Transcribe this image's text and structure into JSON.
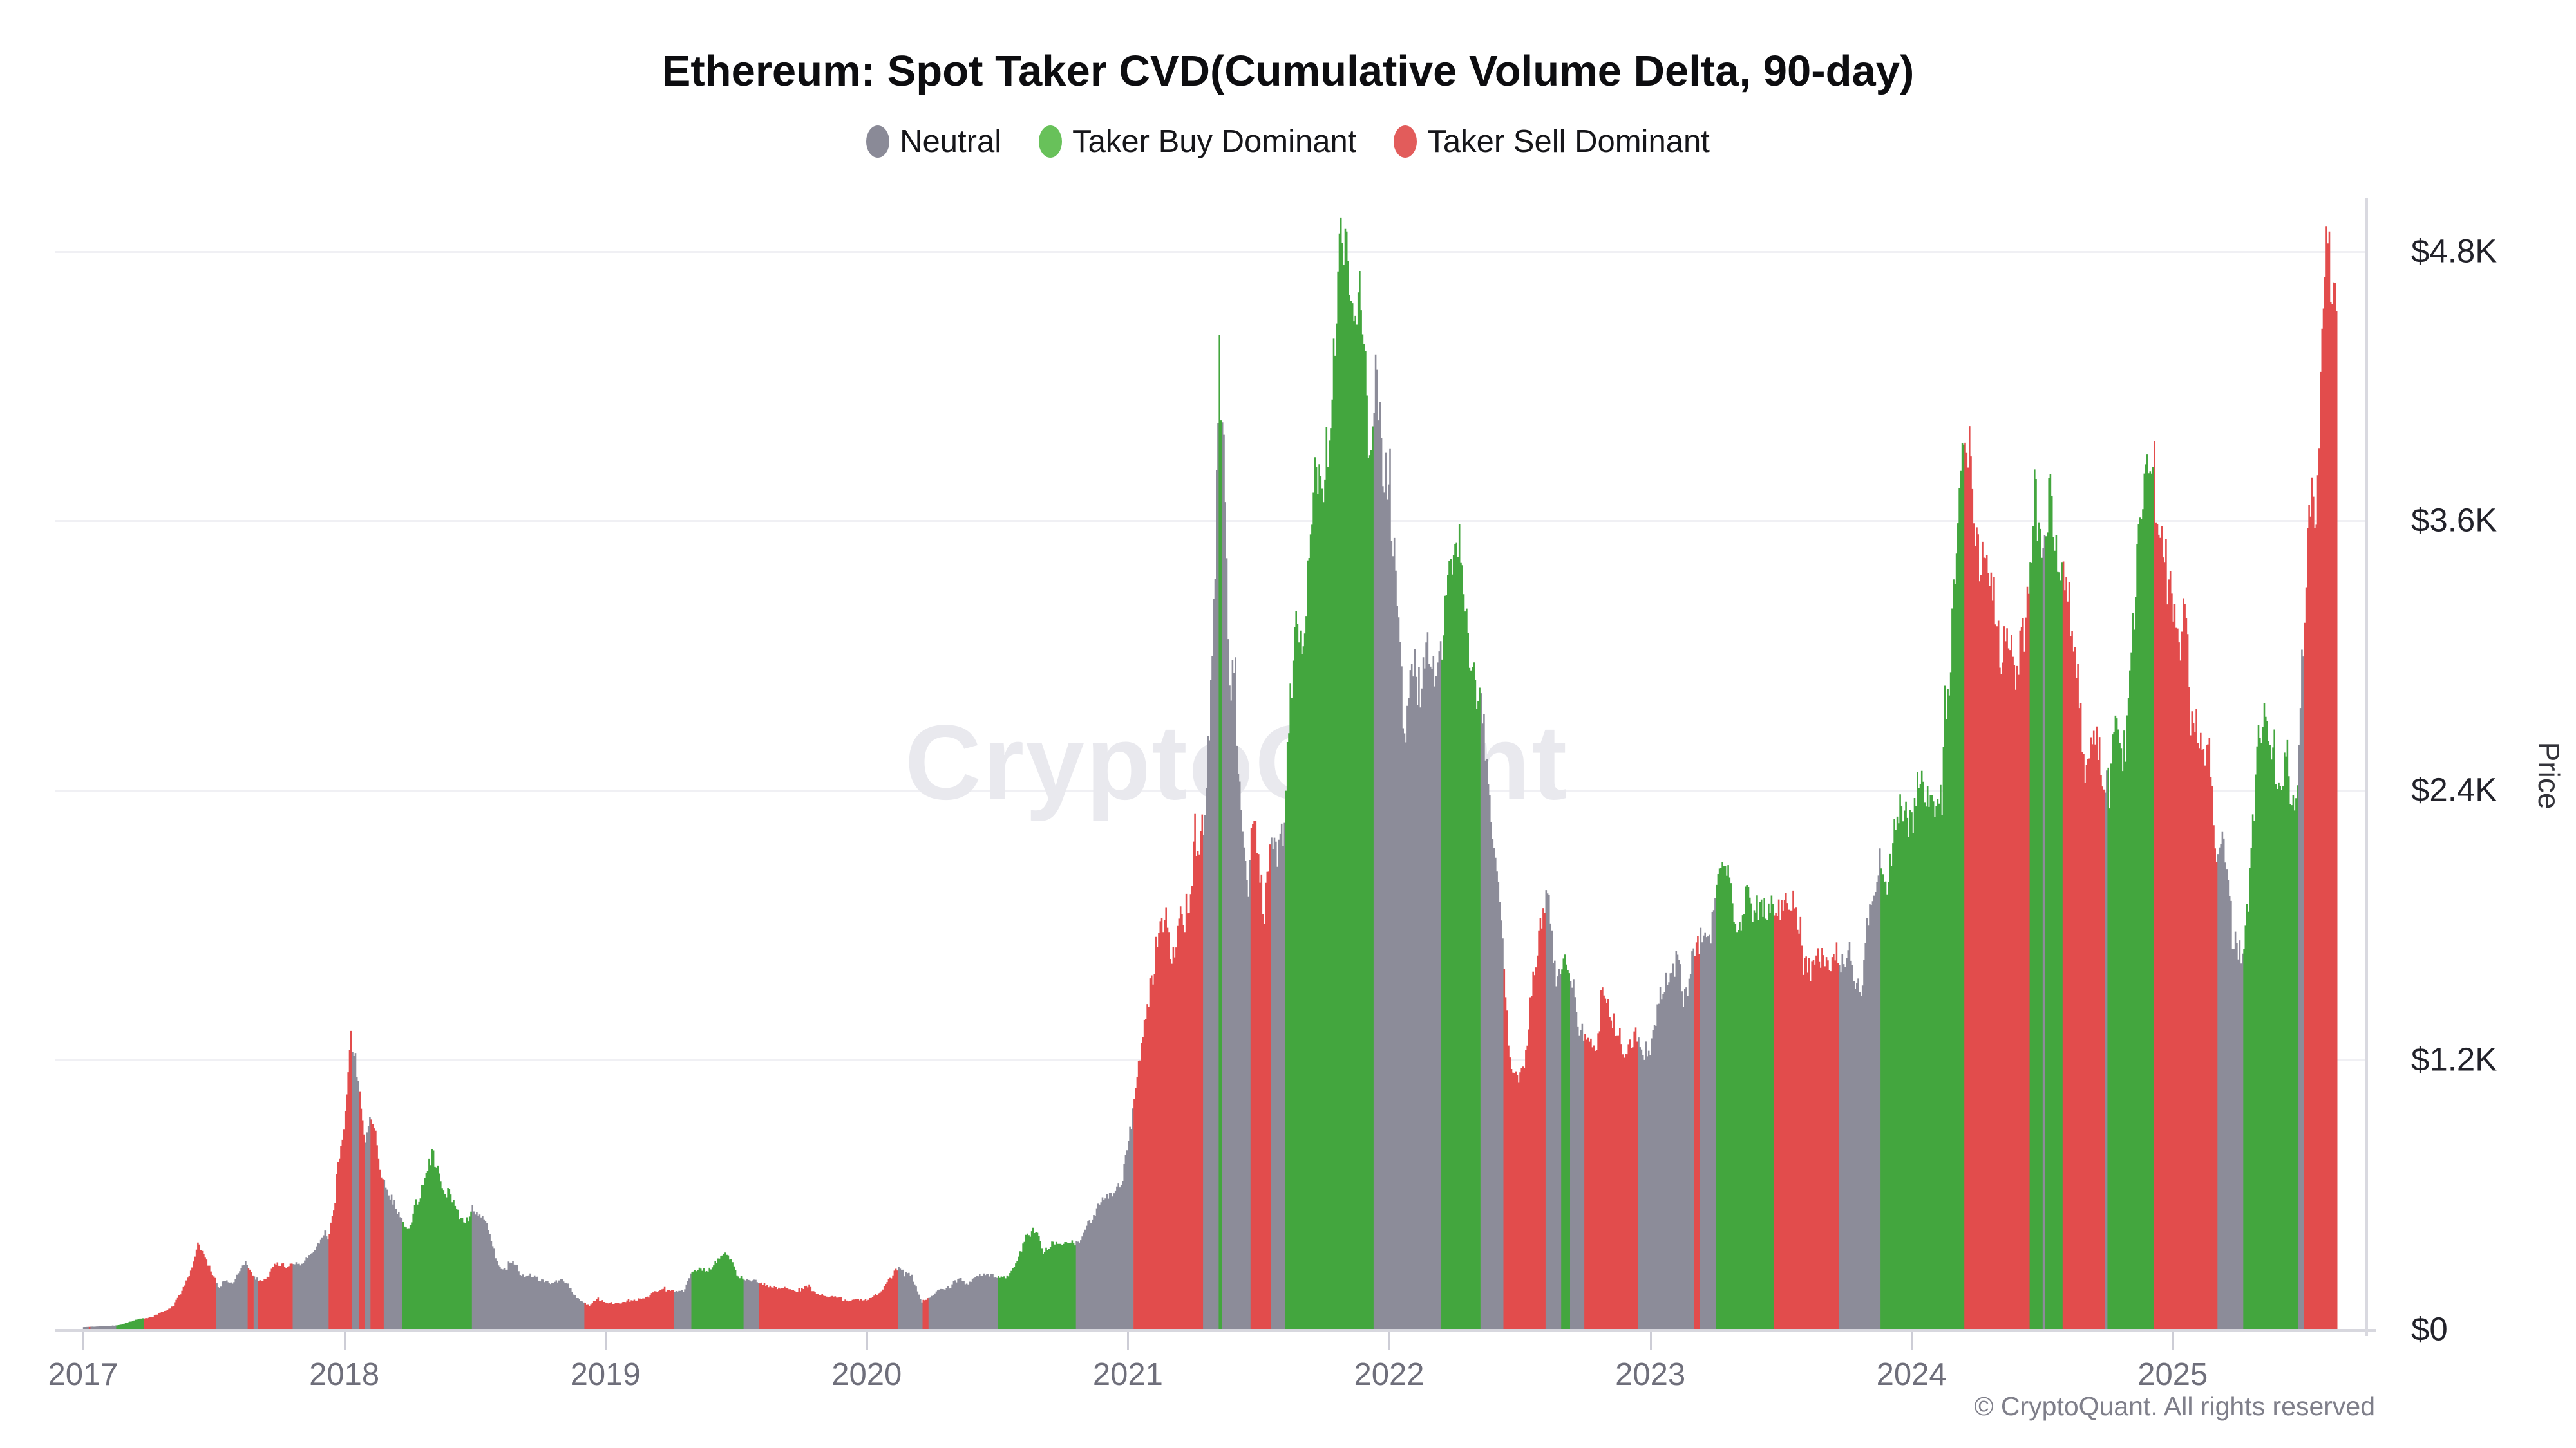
{
  "title": "Ethereum: Spot Taker CVD(Cumulative Volume Delta, 90-day)",
  "watermark": "CryptoQuant",
  "footer": "© CryptoQuant. All rights reserved",
  "legend": {
    "items": [
      {
        "label": "Neutral",
        "color": "#8a8a97"
      },
      {
        "label": "Taker Buy Dominant",
        "color": "#68c15a"
      },
      {
        "label": "Taker Sell Dominant",
        "color": "#e25c5b"
      }
    ]
  },
  "chart_data": {
    "type": "bar",
    "title": "Ethereum: Spot Taker CVD(Cumulative Volume Delta, 90-day)",
    "xlabel": "",
    "ylabel": "Price",
    "legend_position": "top",
    "grid": "horizontal-only",
    "x_range": [
      2017.0,
      2025.63
    ],
    "ylim": [
      0,
      5020
    ],
    "x_axis_years": [
      2017,
      2018,
      2019,
      2020,
      2021,
      2022,
      2023,
      2024,
      2025
    ],
    "y_ticks": [
      {
        "value": 0,
        "label": "$0"
      },
      {
        "value": 1200,
        "label": "$1.2K"
      },
      {
        "value": 2400,
        "label": "$2.4K"
      },
      {
        "value": 3600,
        "label": "$3.6K"
      },
      {
        "value": 4800,
        "label": "$4.8K"
      }
    ],
    "series_unit": "USD",
    "states": {
      "n": "neutral",
      "g": "taker-buy-dominant",
      "r": "taker-sell-dominant"
    },
    "colors": {
      "n": "#8c8c99",
      "g": "#43a63e",
      "r": "#e24c4c"
    },
    "price_anchors": [
      [
        2017.0,
        8
      ],
      [
        2017.05,
        11
      ],
      [
        2017.1,
        14
      ],
      [
        2017.14,
        18
      ],
      [
        2017.18,
        32
      ],
      [
        2017.22,
        48
      ],
      [
        2017.26,
        52
      ],
      [
        2017.3,
        72
      ],
      [
        2017.34,
        95
      ],
      [
        2017.38,
        165
      ],
      [
        2017.42,
        270
      ],
      [
        2017.44,
        390
      ],
      [
        2017.46,
        345
      ],
      [
        2017.49,
        270
      ],
      [
        2017.52,
        180
      ],
      [
        2017.55,
        230
      ],
      [
        2017.57,
        205
      ],
      [
        2017.6,
        275
      ],
      [
        2017.62,
        310
      ],
      [
        2017.65,
        250
      ],
      [
        2017.68,
        215
      ],
      [
        2017.71,
        230
      ],
      [
        2017.74,
        295
      ],
      [
        2017.77,
        285
      ],
      [
        2017.8,
        298
      ],
      [
        2017.83,
        292
      ],
      [
        2017.86,
        325
      ],
      [
        2017.89,
        350
      ],
      [
        2017.92,
        420
      ],
      [
        2017.95,
        470
      ],
      [
        2017.975,
        700
      ],
      [
        2018.0,
        880
      ],
      [
        2018.025,
        1330
      ],
      [
        2018.045,
        1190
      ],
      [
        2018.065,
        1010
      ],
      [
        2018.085,
        860
      ],
      [
        2018.105,
        950
      ],
      [
        2018.125,
        840
      ],
      [
        2018.145,
        700
      ],
      [
        2018.17,
        590
      ],
      [
        2018.2,
        540
      ],
      [
        2018.22,
        480
      ],
      [
        2018.25,
        430
      ],
      [
        2018.28,
        560
      ],
      [
        2018.31,
        700
      ],
      [
        2018.34,
        820
      ],
      [
        2018.37,
        680
      ],
      [
        2018.4,
        600
      ],
      [
        2018.43,
        520
      ],
      [
        2018.46,
        470
      ],
      [
        2018.49,
        560
      ],
      [
        2018.52,
        500
      ],
      [
        2018.55,
        455
      ],
      [
        2018.58,
        300
      ],
      [
        2018.61,
        275
      ],
      [
        2018.64,
        290
      ],
      [
        2018.67,
        255
      ],
      [
        2018.7,
        235
      ],
      [
        2018.73,
        228
      ],
      [
        2018.76,
        215
      ],
      [
        2018.79,
        205
      ],
      [
        2018.82,
        218
      ],
      [
        2018.85,
        208
      ],
      [
        2018.88,
        155
      ],
      [
        2018.91,
        115
      ],
      [
        2018.94,
        98
      ],
      [
        2018.97,
        135
      ],
      [
        2019.0,
        122
      ],
      [
        2019.03,
        108
      ],
      [
        2019.06,
        112
      ],
      [
        2019.09,
        126
      ],
      [
        2019.12,
        136
      ],
      [
        2019.15,
        142
      ],
      [
        2019.18,
        158
      ],
      [
        2019.21,
        172
      ],
      [
        2019.24,
        166
      ],
      [
        2019.27,
        162
      ],
      [
        2019.3,
        176
      ],
      [
        2019.33,
        248
      ],
      [
        2019.36,
        262
      ],
      [
        2019.39,
        248
      ],
      [
        2019.43,
        298
      ],
      [
        2019.46,
        358
      ],
      [
        2019.48,
        308
      ],
      [
        2019.51,
        232
      ],
      [
        2019.54,
        215
      ],
      [
        2019.57,
        228
      ],
      [
        2019.6,
        202
      ],
      [
        2019.63,
        186
      ],
      [
        2019.66,
        172
      ],
      [
        2019.69,
        186
      ],
      [
        2019.72,
        176
      ],
      [
        2019.75,
        172
      ],
      [
        2019.78,
        186
      ],
      [
        2019.81,
        162
      ],
      [
        2019.84,
        148
      ],
      [
        2019.87,
        142
      ],
      [
        2019.9,
        136
      ],
      [
        2019.93,
        128
      ],
      [
        2019.96,
        131
      ],
      [
        2020.0,
        133
      ],
      [
        2020.03,
        147
      ],
      [
        2020.06,
        172
      ],
      [
        2020.09,
        226
      ],
      [
        2020.12,
        262
      ],
      [
        2020.15,
        242
      ],
      [
        2020.18,
        225
      ],
      [
        2020.21,
        122
      ],
      [
        2020.24,
        138
      ],
      [
        2020.27,
        162
      ],
      [
        2020.3,
        188
      ],
      [
        2020.33,
        202
      ],
      [
        2020.36,
        212
      ],
      [
        2020.39,
        206
      ],
      [
        2020.42,
        236
      ],
      [
        2020.45,
        231
      ],
      [
        2020.48,
        229
      ],
      [
        2020.51,
        232
      ],
      [
        2020.54,
        242
      ],
      [
        2020.57,
        292
      ],
      [
        2020.6,
        388
      ],
      [
        2020.63,
        425
      ],
      [
        2020.65,
        438
      ],
      [
        2020.68,
        335
      ],
      [
        2020.71,
        368
      ],
      [
        2020.74,
        358
      ],
      [
        2020.77,
        378
      ],
      [
        2020.8,
        388
      ],
      [
        2020.83,
        442
      ],
      [
        2020.86,
        485
      ],
      [
        2020.89,
        545
      ],
      [
        2020.92,
        605
      ],
      [
        2020.95,
        625
      ],
      [
        2020.98,
        688
      ],
      [
        2021.01,
        860
      ],
      [
        2021.03,
        1080
      ],
      [
        2021.06,
        1320
      ],
      [
        2021.09,
        1620
      ],
      [
        2021.12,
        1760
      ],
      [
        2021.15,
        1850
      ],
      [
        2021.17,
        1620
      ],
      [
        2021.2,
        1920
      ],
      [
        2021.23,
        1780
      ],
      [
        2021.26,
        2120
      ],
      [
        2021.29,
        2360
      ],
      [
        2021.32,
        2950
      ],
      [
        2021.35,
        4160
      ],
      [
        2021.37,
        3700
      ],
      [
        2021.39,
        2750
      ],
      [
        2021.41,
        2880
      ],
      [
        2021.43,
        2380
      ],
      [
        2021.46,
        2020
      ],
      [
        2021.48,
        2420
      ],
      [
        2021.5,
        2170
      ],
      [
        2021.52,
        1880
      ],
      [
        2021.55,
        2260
      ],
      [
        2021.57,
        2160
      ],
      [
        2021.6,
        2320
      ],
      [
        2021.62,
        2660
      ],
      [
        2021.65,
        3220
      ],
      [
        2021.67,
        3060
      ],
      [
        2021.69,
        3260
      ],
      [
        2021.72,
        3860
      ],
      [
        2021.74,
        3620
      ],
      [
        2021.77,
        3960
      ],
      [
        2021.79,
        4320
      ],
      [
        2021.81,
        4660
      ],
      [
        2021.83,
        4810
      ],
      [
        2021.85,
        4610
      ],
      [
        2021.87,
        4360
      ],
      [
        2021.89,
        4660
      ],
      [
        2021.91,
        4260
      ],
      [
        2021.93,
        4160
      ],
      [
        2021.95,
        4460
      ],
      [
        2021.97,
        4110
      ],
      [
        2022.0,
        3760
      ],
      [
        2022.03,
        3260
      ],
      [
        2022.06,
        2620
      ],
      [
        2022.09,
        2960
      ],
      [
        2022.12,
        2720
      ],
      [
        2022.15,
        2960
      ],
      [
        2022.18,
        2860
      ],
      [
        2022.21,
        3160
      ],
      [
        2022.24,
        3360
      ],
      [
        2022.26,
        3480
      ],
      [
        2022.29,
        3160
      ],
      [
        2022.32,
        2960
      ],
      [
        2022.35,
        2720
      ],
      [
        2022.38,
        2360
      ],
      [
        2022.41,
        2020
      ],
      [
        2022.43,
        1780
      ],
      [
        2022.46,
        1210
      ],
      [
        2022.49,
        1110
      ],
      [
        2022.52,
        1210
      ],
      [
        2022.55,
        1510
      ],
      [
        2022.58,
        1710
      ],
      [
        2022.61,
        1910
      ],
      [
        2022.64,
        1620
      ],
      [
        2022.67,
        1710
      ],
      [
        2022.7,
        1610
      ],
      [
        2022.73,
        1360
      ],
      [
        2022.76,
        1340
      ],
      [
        2022.79,
        1310
      ],
      [
        2022.82,
        1510
      ],
      [
        2022.85,
        1340
      ],
      [
        2022.88,
        1260
      ],
      [
        2022.91,
        1160
      ],
      [
        2022.94,
        1275
      ],
      [
        2022.97,
        1210
      ],
      [
        2023.0,
        1225
      ],
      [
        2023.04,
        1455
      ],
      [
        2023.08,
        1605
      ],
      [
        2023.11,
        1655
      ],
      [
        2023.13,
        1505
      ],
      [
        2023.16,
        1655
      ],
      [
        2023.19,
        1755
      ],
      [
        2023.22,
        1805
      ],
      [
        2023.25,
        1875
      ],
      [
        2023.28,
        2085
      ],
      [
        2023.31,
        1905
      ],
      [
        2023.34,
        1835
      ],
      [
        2023.37,
        1885
      ],
      [
        2023.4,
        1905
      ],
      [
        2023.43,
        1885
      ],
      [
        2023.46,
        1865
      ],
      [
        2023.49,
        1925
      ],
      [
        2023.52,
        1885
      ],
      [
        2023.55,
        1835
      ],
      [
        2023.58,
        1675
      ],
      [
        2023.61,
        1655
      ],
      [
        2023.64,
        1635
      ],
      [
        2023.67,
        1605
      ],
      [
        2023.7,
        1655
      ],
      [
        2023.73,
        1585
      ],
      [
        2023.76,
        1685
      ],
      [
        2023.79,
        1565
      ],
      [
        2023.82,
        1635
      ],
      [
        2023.85,
        1855
      ],
      [
        2023.88,
        2055
      ],
      [
        2023.91,
        1985
      ],
      [
        2023.94,
        2255
      ],
      [
        2023.97,
        2355
      ],
      [
        2024.0,
        2305
      ],
      [
        2024.03,
        2405
      ],
      [
        2024.06,
        2305
      ],
      [
        2024.09,
        2355
      ],
      [
        2024.12,
        2555
      ],
      [
        2024.15,
        2905
      ],
      [
        2024.18,
        3655
      ],
      [
        2024.2,
        4060
      ],
      [
        2024.22,
        3905
      ],
      [
        2024.24,
        3555
      ],
      [
        2024.26,
        3255
      ],
      [
        2024.29,
        3505
      ],
      [
        2024.32,
        3305
      ],
      [
        2024.34,
        3005
      ],
      [
        2024.37,
        3155
      ],
      [
        2024.4,
        2955
      ],
      [
        2024.43,
        3105
      ],
      [
        2024.45,
        3355
      ],
      [
        2024.47,
        3805
      ],
      [
        2024.5,
        3655
      ],
      [
        2024.53,
        3855
      ],
      [
        2024.55,
        3505
      ],
      [
        2024.58,
        3405
      ],
      [
        2024.61,
        3105
      ],
      [
        2024.64,
        2905
      ],
      [
        2024.67,
        2405
      ],
      [
        2024.7,
        2655
      ],
      [
        2024.72,
        2555
      ],
      [
        2024.74,
        2355
      ],
      [
        2024.76,
        2405
      ],
      [
        2024.78,
        2655
      ],
      [
        2024.8,
        2485
      ],
      [
        2024.82,
        2555
      ],
      [
        2024.85,
        3155
      ],
      [
        2024.87,
        3405
      ],
      [
        2024.89,
        3655
      ],
      [
        2024.91,
        4005
      ],
      [
        2024.93,
        3905
      ],
      [
        2024.95,
        3405
      ],
      [
        2024.98,
        3455
      ],
      [
        2025.01,
        3305
      ],
      [
        2025.03,
        3055
      ],
      [
        2025.05,
        3255
      ],
      [
        2025.07,
        2705
      ],
      [
        2025.1,
        2755
      ],
      [
        2025.13,
        2655
      ],
      [
        2025.15,
        2305
      ],
      [
        2025.17,
        2005
      ],
      [
        2025.19,
        2155
      ],
      [
        2025.22,
        1905
      ],
      [
        2025.25,
        1655
      ],
      [
        2025.27,
        1605
      ],
      [
        2025.29,
        1855
      ],
      [
        2025.32,
        2455
      ],
      [
        2025.35,
        2605
      ],
      [
        2025.38,
        2505
      ],
      [
        2025.41,
        2355
      ],
      [
        2025.44,
        2555
      ],
      [
        2025.46,
        2455
      ],
      [
        2025.48,
        2505
      ],
      [
        2025.5,
        2955
      ],
      [
        2025.53,
        3655
      ],
      [
        2025.55,
        3555
      ],
      [
        2025.57,
        4355
      ],
      [
        2025.59,
        4755
      ],
      [
        2025.6,
        4870
      ],
      [
        2025.61,
        4405
      ],
      [
        2025.62,
        4550
      ],
      [
        2025.63,
        4300
      ]
    ],
    "state_segments": [
      [
        2017.0,
        2017.02,
        "n"
      ],
      [
        2017.02,
        2017.03,
        "r"
      ],
      [
        2017.03,
        2017.13,
        "n"
      ],
      [
        2017.13,
        2017.23,
        "g"
      ],
      [
        2017.23,
        2017.51,
        "r"
      ],
      [
        2017.51,
        2017.63,
        "n"
      ],
      [
        2017.63,
        2017.655,
        "r"
      ],
      [
        2017.655,
        2017.67,
        "n"
      ],
      [
        2017.67,
        2017.8,
        "r"
      ],
      [
        2017.8,
        2017.94,
        "n"
      ],
      [
        2017.94,
        2018.03,
        "r"
      ],
      [
        2018.03,
        2018.055,
        "n"
      ],
      [
        2018.055,
        2018.08,
        "r"
      ],
      [
        2018.08,
        2018.1,
        "n"
      ],
      [
        2018.1,
        2018.15,
        "r"
      ],
      [
        2018.15,
        2018.22,
        "n"
      ],
      [
        2018.22,
        2018.49,
        "g"
      ],
      [
        2018.49,
        2018.92,
        "n"
      ],
      [
        2018.92,
        2019.26,
        "r"
      ],
      [
        2019.26,
        2019.33,
        "n"
      ],
      [
        2019.33,
        2019.53,
        "g"
      ],
      [
        2019.53,
        2019.59,
        "n"
      ],
      [
        2019.59,
        2020.12,
        "r"
      ],
      [
        2020.12,
        2020.215,
        "n"
      ],
      [
        2020.215,
        2020.235,
        "r"
      ],
      [
        2020.235,
        2020.5,
        "n"
      ],
      [
        2020.5,
        2020.8,
        "g"
      ],
      [
        2020.8,
        2021.02,
        "n"
      ],
      [
        2021.02,
        2021.29,
        "r"
      ],
      [
        2021.29,
        2021.35,
        "n"
      ],
      [
        2021.35,
        2021.36,
        "g"
      ],
      [
        2021.36,
        2021.47,
        "n"
      ],
      [
        2021.47,
        2021.55,
        "r"
      ],
      [
        2021.55,
        2021.6,
        "n"
      ],
      [
        2021.6,
        2021.94,
        "g"
      ],
      [
        2021.94,
        2022.2,
        "n"
      ],
      [
        2022.2,
        2022.35,
        "g"
      ],
      [
        2022.35,
        2022.44,
        "n"
      ],
      [
        2022.44,
        2022.6,
        "r"
      ],
      [
        2022.6,
        2022.66,
        "n"
      ],
      [
        2022.66,
        2022.69,
        "g"
      ],
      [
        2022.69,
        2022.75,
        "n"
      ],
      [
        2022.75,
        2022.95,
        "r"
      ],
      [
        2022.95,
        2023.17,
        "n"
      ],
      [
        2023.17,
        2023.19,
        "r"
      ],
      [
        2023.19,
        2023.25,
        "n"
      ],
      [
        2023.25,
        2023.47,
        "g"
      ],
      [
        2023.47,
        2023.72,
        "r"
      ],
      [
        2023.72,
        2023.88,
        "n"
      ],
      [
        2023.88,
        2024.2,
        "g"
      ],
      [
        2024.2,
        2024.45,
        "r"
      ],
      [
        2024.45,
        2024.5,
        "g"
      ],
      [
        2024.5,
        2024.51,
        "n"
      ],
      [
        2024.51,
        2024.58,
        "g"
      ],
      [
        2024.58,
        2024.74,
        "r"
      ],
      [
        2024.74,
        2024.75,
        "n"
      ],
      [
        2024.75,
        2024.93,
        "g"
      ],
      [
        2024.93,
        2025.17,
        "r"
      ],
      [
        2025.17,
        2025.27,
        "n"
      ],
      [
        2025.27,
        2025.48,
        "g"
      ],
      [
        2025.48,
        2025.5,
        "n"
      ],
      [
        2025.5,
        2025.63,
        "r"
      ]
    ]
  }
}
